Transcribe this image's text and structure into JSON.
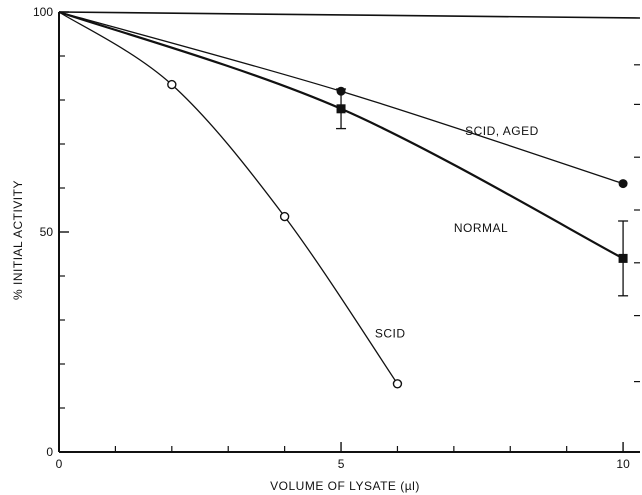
{
  "chart_data": {
    "type": "line",
    "title": "",
    "xlabel": "VOLUME OF LYSATE (µl)",
    "ylabel": "% INITIAL ACTIVITY",
    "xlim": [
      0,
      10.3
    ],
    "ylim": [
      0,
      100
    ],
    "xticks": [
      {
        "value": 0,
        "label": "0"
      },
      {
        "value": 5,
        "label": "5"
      },
      {
        "value": 10,
        "label": "10"
      }
    ],
    "yticks": [
      {
        "value": 0,
        "label": "0"
      },
      {
        "value": 50,
        "label": "50"
      },
      {
        "value": 100,
        "label": "100"
      }
    ],
    "grid": false,
    "series": [
      {
        "name": "SCID, AGED",
        "marker": "filled-circle",
        "stroke_width": 1.3,
        "x": [
          0,
          5,
          10
        ],
        "y": [
          100,
          82,
          61
        ],
        "label_pos": {
          "x": 7.2,
          "y": 72
        }
      },
      {
        "name": "NORMAL",
        "marker": "filled-square",
        "stroke_width": 2.2,
        "x": [
          0,
          5,
          10
        ],
        "y": [
          100,
          78,
          44
        ],
        "error_bars": [
          0,
          4.5,
          8.5
        ],
        "label_pos": {
          "x": 7.0,
          "y": 50
        }
      },
      {
        "name": "SCID",
        "marker": "open-circle",
        "stroke_width": 1.3,
        "x": [
          0,
          2,
          4,
          6
        ],
        "y": [
          100,
          83.5,
          53.5,
          15.5
        ],
        "label_pos": {
          "x": 5.6,
          "y": 26
        }
      }
    ]
  }
}
